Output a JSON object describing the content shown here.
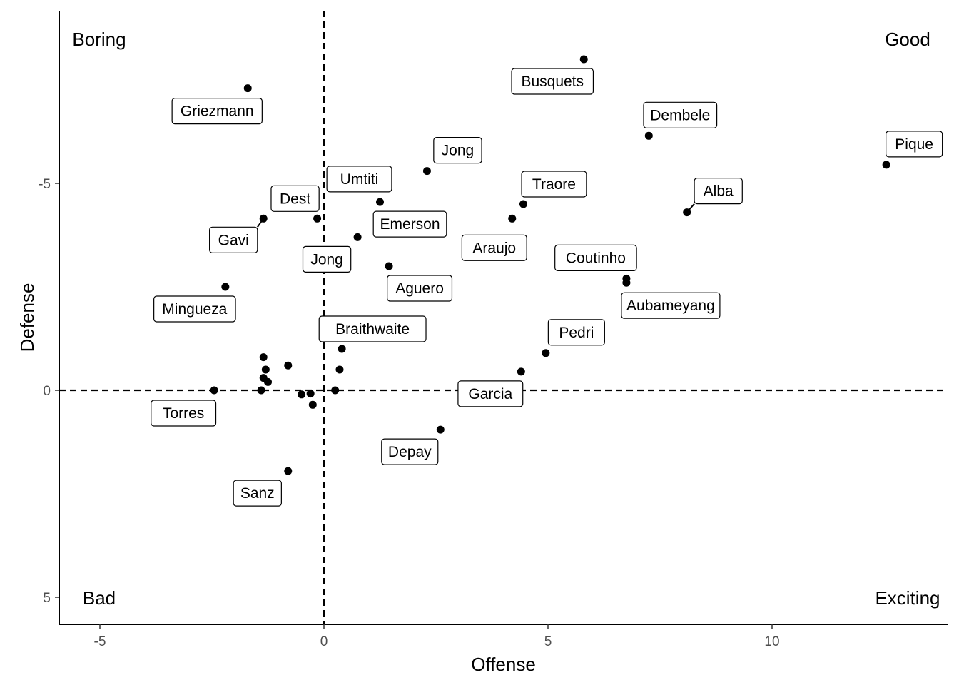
{
  "chart_data": {
    "type": "scatter",
    "xlabel": "Offense",
    "ylabel": "Defense",
    "xlim": [
      -5.9,
      13.9
    ],
    "ylim": [
      -10.15,
      5.75
    ],
    "y_reversed": true,
    "x_ticks": [
      -5,
      0,
      5,
      10
    ],
    "y_ticks": [
      -5,
      0,
      5
    ],
    "x_tick_labels": [
      "-5",
      "0",
      "5",
      "10"
    ],
    "y_tick_labels": [
      "-5",
      "0",
      "5"
    ],
    "reference_lines": {
      "x": 0,
      "y": 0,
      "style": "dashed"
    },
    "grid": false,
    "quadrant_labels": [
      {
        "text": "Boring",
        "position": "top-left"
      },
      {
        "text": "Good",
        "position": "top-right"
      },
      {
        "text": "Bad",
        "position": "bottom-left"
      },
      {
        "text": "Exciting",
        "position": "bottom-right"
      }
    ],
    "points": [
      {
        "x": 5.8,
        "y": -8.0,
        "label": "Busquets"
      },
      {
        "x": -1.7,
        "y": -7.3,
        "label": "Griezmann"
      },
      {
        "x": 7.25,
        "y": -6.15,
        "label": "Dembele"
      },
      {
        "x": 12.55,
        "y": -5.45,
        "label": "Pique"
      },
      {
        "x": 2.3,
        "y": -5.3,
        "label": "Jong"
      },
      {
        "x": 0.9,
        "y": -4.95,
        "label": "Umtiti"
      },
      {
        "x": 4.45,
        "y": -4.5,
        "label": "Traore"
      },
      {
        "x": 8.1,
        "y": -4.3,
        "label": "Alba"
      },
      {
        "x": 1.25,
        "y": -4.55,
        "label": "Emerson"
      },
      {
        "x": 4.2,
        "y": -4.15,
        "label": "Araujo"
      },
      {
        "x": -1.35,
        "y": -4.15,
        "label": "Gavi"
      },
      {
        "x": -0.15,
        "y": -4.15,
        "label": "Dest"
      },
      {
        "x": 0.75,
        "y": -3.7,
        "label": "Jong"
      },
      {
        "x": 1.45,
        "y": -3.0,
        "label": "Aguero"
      },
      {
        "x": 6.75,
        "y": -2.7,
        "label": "Coutinho"
      },
      {
        "x": 6.75,
        "y": -2.6,
        "label": "Aubameyang"
      },
      {
        "x": -2.2,
        "y": -2.5,
        "label": "Mingueza"
      },
      {
        "x": 0.4,
        "y": -1.0,
        "label": "Braithwaite"
      },
      {
        "x": 4.95,
        "y": -0.9,
        "label": "Pedri"
      },
      {
        "x": 4.4,
        "y": -0.45,
        "label": "Garcia"
      },
      {
        "x": -2.45,
        "y": 0.0,
        "label": "Torres"
      },
      {
        "x": 2.6,
        "y": 0.95,
        "label": "Depay"
      },
      {
        "x": -0.8,
        "y": 1.95,
        "label": "Sanz"
      },
      {
        "x": -1.35,
        "y": -0.8,
        "label": ""
      },
      {
        "x": -0.8,
        "y": -0.6,
        "label": ""
      },
      {
        "x": -1.3,
        "y": -0.5,
        "label": ""
      },
      {
        "x": -1.35,
        "y": -0.3,
        "label": ""
      },
      {
        "x": -1.25,
        "y": -0.2,
        "label": ""
      },
      {
        "x": -1.4,
        "y": 0.0,
        "label": ""
      },
      {
        "x": 0.35,
        "y": -0.5,
        "label": ""
      },
      {
        "x": 0.25,
        "y": 0.0,
        "label": ""
      },
      {
        "x": -0.5,
        "y": 0.1,
        "label": ""
      },
      {
        "x": -0.3,
        "y": 0.08,
        "label": ""
      },
      {
        "x": -0.25,
        "y": 0.35,
        "label": ""
      }
    ],
    "label_offsets_note": "",
    "colors": {
      "points": "#000000",
      "axis": "#000000",
      "tick_text": "#4d4d4d"
    }
  }
}
